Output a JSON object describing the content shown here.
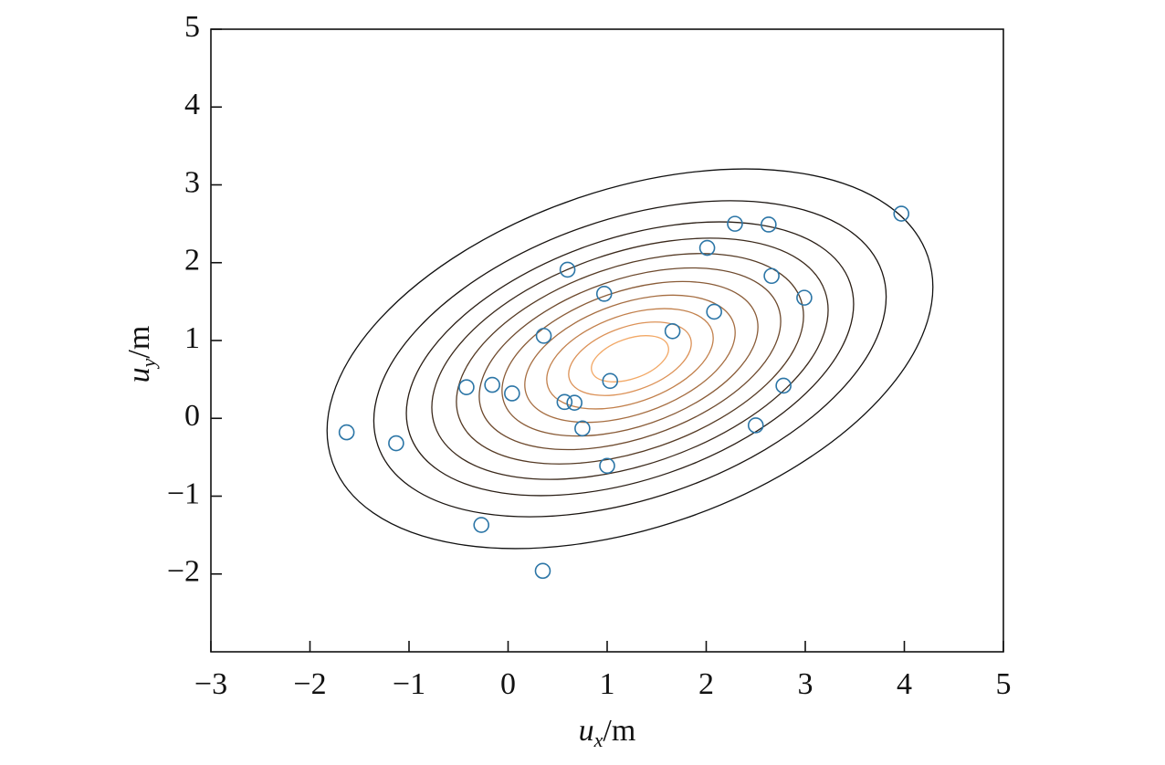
{
  "chart_data": {
    "type": "scatter",
    "x": [
      -1.63,
      -1.13,
      -0.42,
      -0.16,
      0.04,
      0.36,
      0.6,
      -0.27,
      0.35,
      0.57,
      0.67,
      0.75,
      1.0,
      1.03,
      0.97,
      1.66,
      2.01,
      2.08,
      2.29,
      2.63,
      2.66,
      2.99,
      2.78,
      2.5,
      3.97
    ],
    "values": [
      -0.18,
      -0.32,
      0.4,
      0.43,
      0.32,
      1.06,
      1.91,
      -1.37,
      -1.96,
      0.21,
      0.2,
      -0.13,
      -0.61,
      0.48,
      1.6,
      1.12,
      2.19,
      1.37,
      2.5,
      2.49,
      1.83,
      1.55,
      0.42,
      -0.09,
      2.63
    ],
    "color": "#2b75a6",
    "xlim": [
      -3,
      5
    ],
    "ylim": [
      -3,
      5
    ],
    "xticks": [
      {
        "value": -3,
        "label": "−3"
      },
      {
        "value": -2,
        "label": "−2"
      },
      {
        "value": -1,
        "label": "−1"
      },
      0,
      1,
      2,
      3,
      4,
      5
    ],
    "yticks": [
      {
        "value": -2,
        "label": "−2"
      },
      {
        "value": -1,
        "label": "−1"
      },
      0,
      1,
      2,
      3,
      4,
      5
    ],
    "xlabel": {
      "symbol": "u",
      "subscript": "x",
      "unit": "/m"
    },
    "ylabel": {
      "symbol": "u",
      "subscript": "y",
      "unit": "/m"
    }
  }
}
